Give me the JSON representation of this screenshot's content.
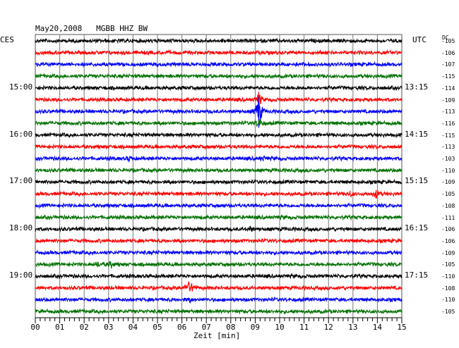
{
  "header": {
    "title": "May20,2008   MGBB HHZ BW",
    "left_zone": "CES",
    "right_zone": "UTC",
    "dc_label": "DC"
  },
  "chart_data": {
    "type": "line",
    "title": "May20,2008   MGBB HHZ BW",
    "xlabel": "Zeit [min]",
    "ylabel": "",
    "xlim": [
      0,
      15
    ],
    "x_ticks": [
      "00",
      "01",
      "02",
      "03",
      "04",
      "05",
      "06",
      "07",
      "08",
      "09",
      "10",
      "11",
      "12",
      "13",
      "14",
      "15"
    ],
    "grid": true,
    "trace_count": 24,
    "trace_colors": [
      "#000000",
      "#ff0000",
      "#0000ff",
      "#007000"
    ],
    "left_hour_labels": [
      {
        "trace": 4,
        "text": "15:00"
      },
      {
        "trace": 8,
        "text": "16:00"
      },
      {
        "trace": 12,
        "text": "17:00"
      },
      {
        "trace": 16,
        "text": "18:00"
      },
      {
        "trace": 20,
        "text": "19:00"
      }
    ],
    "right_hour_labels": [
      {
        "trace": 4,
        "text": "13:15"
      },
      {
        "trace": 8,
        "text": "14:15"
      },
      {
        "trace": 12,
        "text": "15:15"
      },
      {
        "trace": 16,
        "text": "16:15"
      },
      {
        "trace": 20,
        "text": "17:15"
      }
    ],
    "dc_offsets": [
      "-105",
      "-106",
      "-107",
      "-115",
      "-114",
      "-109",
      "-113",
      "-116",
      "-115",
      "-113",
      "-103",
      "-110",
      "-109",
      "-105",
      "-108",
      "-111",
      "-106",
      "-106",
      "-109",
      "-105",
      "-110",
      "-108",
      "-110",
      "-105"
    ],
    "events": [
      {
        "trace": 6,
        "minute": 9.15,
        "amplitude": 28
      },
      {
        "trace": 5,
        "minute": 9.15,
        "amplitude": 10
      },
      {
        "trace": 7,
        "minute": 9.15,
        "amplitude": 8
      },
      {
        "trace": 21,
        "minute": 6.25,
        "amplitude": 9
      },
      {
        "trace": 21,
        "minute": 6.45,
        "amplitude": 5
      },
      {
        "trace": 22,
        "minute": 6.3,
        "amplitude": 3
      },
      {
        "trace": 13,
        "minute": 13.95,
        "amplitude": 6
      },
      {
        "trace": 13,
        "minute": 12.9,
        "amplitude": 3
      },
      {
        "trace": 19,
        "minute": 3.1,
        "amplitude": 4
      },
      {
        "trace": 19,
        "minute": 2.55,
        "amplitude": 3
      },
      {
        "trace": 10,
        "minute": 9.3,
        "amplitude": 3
      },
      {
        "trace": 10,
        "minute": 3.85,
        "amplitude": 3
      },
      {
        "trace": 16,
        "minute": 8.8,
        "amplitude": 3
      }
    ]
  }
}
